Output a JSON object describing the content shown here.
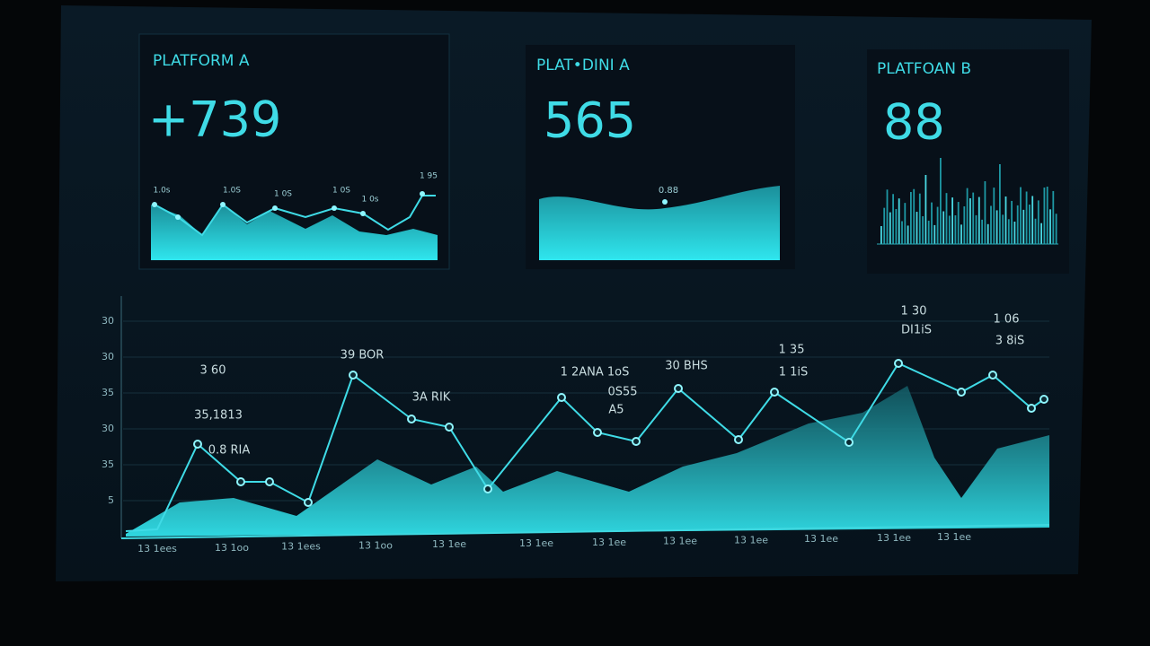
{
  "cards": [
    {
      "title": "PLATFORM A",
      "value": "+739",
      "labels": [
        "1.0s",
        "1.0S",
        "1 0S",
        "1 0S",
        "1 0s",
        "1 95"
      ]
    },
    {
      "title": "PLAT•DINI A",
      "value": "565",
      "labels": [
        "0.88"
      ]
    },
    {
      "title": "PLATFOAN B",
      "value": "88",
      "labels": []
    }
  ],
  "main_chart": {
    "y_labels": [
      "30",
      "30",
      "35",
      "30",
      "35",
      "5"
    ],
    "x_labels": [
      "13 1ees",
      "13 1oo",
      "13 1ees",
      "13 1oo",
      "13 1ee",
      "13 1ee",
      "13 1ee",
      "13 1ee",
      "13 1ee",
      "13 1ee",
      "13 1ee",
      "13 1ee"
    ],
    "point_labels": [
      "3 60",
      "35,1813",
      "0.8 RIA",
      "39 BOR",
      "3A RIK",
      "1 2ANA 1oS",
      "0S55",
      "A5",
      "30 BHS",
      "1 35",
      "1 1iS",
      "1 30",
      "DI1iS",
      "1 06",
      "3 8iS"
    ]
  }
}
